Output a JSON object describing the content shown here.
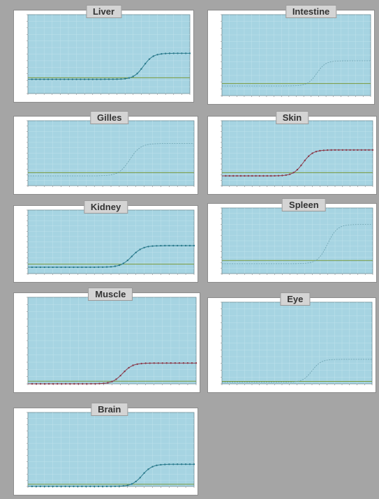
{
  "colors": {
    "plot_bg": "#a6d4e2",
    "grid": "#bfe2ec",
    "threshold": "#7a9a3c",
    "curve_teal": "#2a7a8c",
    "curve_red": "#8a3a4a",
    "curve_light": "#6aa0ae"
  },
  "chart_data": [
    {
      "type": "line",
      "title": "Liver",
      "xlim": [
        0,
        40
      ],
      "ylim": [
        0,
        10
      ],
      "threshold": 2.0,
      "series": [
        {
          "curve": {
            "baseline": 1.8,
            "plateau": 5.1,
            "midpoint": 28.5,
            "slope": 1.2
          },
          "color": "curve_teal",
          "markers": true
        }
      ]
    },
    {
      "type": "line",
      "title": "Intestine",
      "xlim": [
        0,
        40
      ],
      "ylim": [
        0,
        10
      ],
      "threshold": 1.5,
      "series": [
        {
          "curve": {
            "baseline": 1.2,
            "plateau": 4.3,
            "midpoint": 25.5,
            "slope": 1.2
          },
          "color": "curve_light",
          "markers": false
        }
      ]
    },
    {
      "type": "line",
      "title": "Gilles",
      "xlim": [
        0,
        40
      ],
      "ylim": [
        0,
        10
      ],
      "threshold": 2.0,
      "series": [
        {
          "curve": {
            "baseline": 1.5,
            "plateau": 6.5,
            "midpoint": 24.5,
            "slope": 1.3
          },
          "color": "curve_light",
          "markers": false
        }
      ]
    },
    {
      "type": "line",
      "title": "Skin",
      "xlim": [
        0,
        40
      ],
      "ylim": [
        0,
        10
      ],
      "threshold": 2.0,
      "series": [
        {
          "curve": {
            "baseline": 1.5,
            "plateau": 5.5,
            "midpoint": 21.5,
            "slope": 1.3
          },
          "color": "curve_red",
          "markers": true
        }
      ]
    },
    {
      "type": "line",
      "title": "Kidney",
      "xlim": [
        0,
        40
      ],
      "ylim": [
        0,
        10
      ],
      "threshold": 1.5,
      "series": [
        {
          "curve": {
            "baseline": 1.0,
            "plateau": 4.4,
            "midpoint": 25.0,
            "slope": 1.3
          },
          "color": "curve_teal",
          "markers": true
        }
      ]
    },
    {
      "type": "line",
      "title": "Spleen",
      "xlim": [
        0,
        40
      ],
      "ylim": [
        0,
        10
      ],
      "threshold": 2.0,
      "series": [
        {
          "curve": {
            "baseline": 1.5,
            "plateau": 7.5,
            "midpoint": 28.0,
            "slope": 1.3
          },
          "color": "curve_light",
          "markers": false
        }
      ]
    },
    {
      "type": "line",
      "title": "Muscle",
      "xlim": [
        0,
        40
      ],
      "ylim": [
        0,
        10
      ],
      "threshold": 0.3,
      "series": [
        {
          "curve": {
            "baseline": 0.0,
            "plateau": 2.4,
            "midpoint": 22.5,
            "slope": 1.2
          },
          "color": "curve_red",
          "markers": true
        }
      ]
    },
    {
      "type": "line",
      "title": "Eye",
      "xlim": [
        0,
        40
      ],
      "ylim": [
        0,
        10
      ],
      "threshold": 0.3,
      "series": [
        {
          "curve": {
            "baseline": 0.2,
            "plateau": 3.0,
            "midpoint": 24.0,
            "slope": 1.2
          },
          "color": "curve_light",
          "markers": false
        }
      ]
    },
    {
      "type": "line",
      "title": "Brain",
      "xlim": [
        0,
        40
      ],
      "ylim": [
        0,
        10
      ],
      "threshold": 0.3,
      "series": [
        {
          "curve": {
            "baseline": 0.0,
            "plateau": 3.0,
            "midpoint": 27.5,
            "slope": 1.2
          },
          "color": "curve_teal",
          "markers": true
        }
      ]
    }
  ]
}
